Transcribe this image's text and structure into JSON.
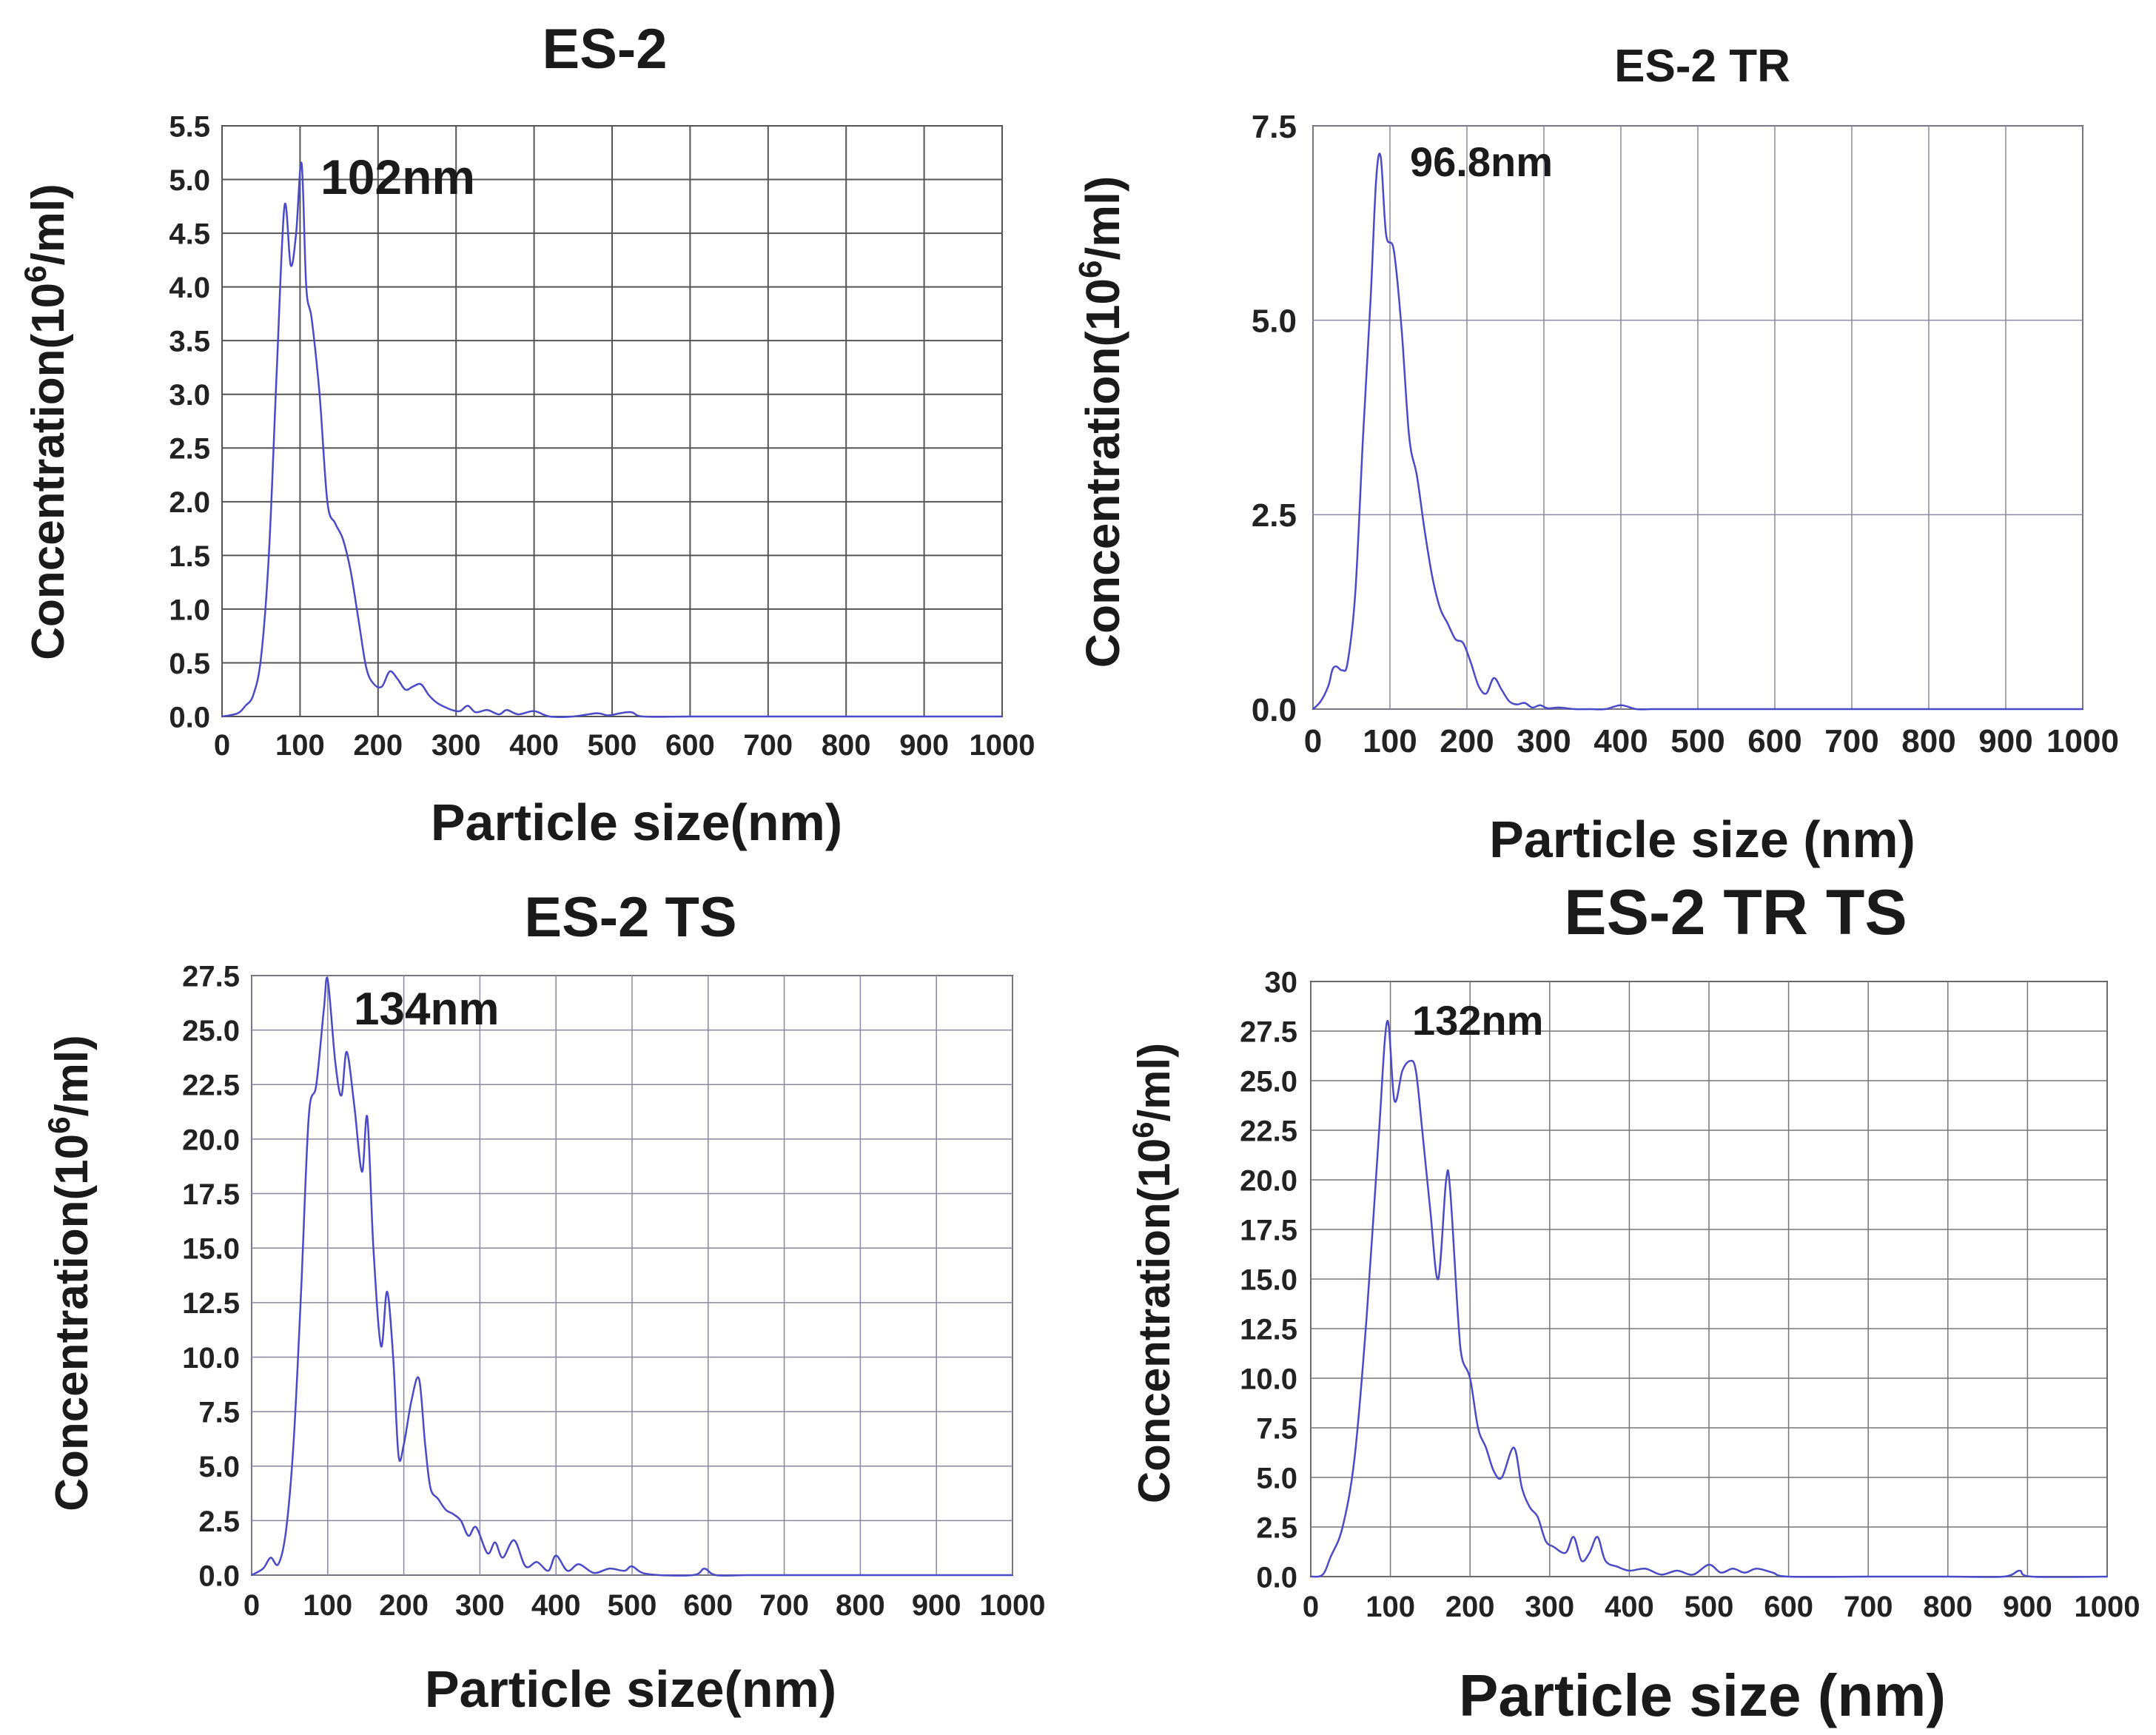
{
  "chart_data": [
    {
      "type": "line",
      "title": "ES-2",
      "xlabel": "Particle size(nm)",
      "ylabel_main": "Concentration(10",
      "ylabel_sup": "6",
      "ylabel_tail": "/ml)",
      "xlim": [
        0,
        1000
      ],
      "ylim": [
        0,
        5.5
      ],
      "xticks": [
        "0",
        "100",
        "200",
        "300",
        "400",
        "500",
        "600",
        "700",
        "800",
        "900",
        "1000"
      ],
      "yticks": [
        "0.0",
        "0.5",
        "1.0",
        "1.5",
        "2.0",
        "2.5",
        "3.0",
        "3.5",
        "4.0",
        "4.5",
        "5.0",
        "5.5"
      ],
      "annotation": {
        "text": "102nm",
        "x": 102
      },
      "line_color": "#4a4ac8",
      "series": [
        {
          "name": "ES-2",
          "x": [
            0,
            20,
            30,
            40,
            50,
            60,
            70,
            80,
            88,
            95,
            102,
            108,
            115,
            125,
            135,
            145,
            155,
            165,
            175,
            185,
            195,
            205,
            215,
            225,
            235,
            245,
            255,
            265,
            275,
            285,
            295,
            305,
            315,
            325,
            340,
            355,
            365,
            380,
            400,
            420,
            450,
            480,
            495,
            510,
            525,
            540,
            600,
            700,
            800,
            900,
            1000
          ],
          "y": [
            0,
            0.03,
            0.1,
            0.2,
            0.55,
            1.5,
            3.2,
            4.75,
            4.2,
            4.5,
            5.15,
            4.0,
            3.7,
            3.0,
            2.0,
            1.8,
            1.65,
            1.35,
            0.9,
            0.45,
            0.3,
            0.28,
            0.42,
            0.35,
            0.25,
            0.28,
            0.3,
            0.2,
            0.13,
            0.09,
            0.06,
            0.05,
            0.1,
            0.04,
            0.06,
            0.02,
            0.06,
            0.02,
            0.05,
            0.0,
            0.0,
            0.03,
            0.01,
            0.03,
            0.04,
            0.0,
            0.0,
            0.0,
            0.0,
            0.0,
            0.0
          ]
        }
      ]
    },
    {
      "type": "line",
      "title": "ES-2 TR",
      "xlabel": "Particle size (nm)",
      "ylabel_main": "Concentration(10",
      "ylabel_sup": "6",
      "ylabel_tail": "/ml)",
      "xlim": [
        0,
        1000
      ],
      "ylim": [
        0,
        7.5
      ],
      "xticks": [
        "0",
        "100",
        "200",
        "300",
        "400",
        "500",
        "600",
        "700",
        "800",
        "900",
        "1000"
      ],
      "yticks": [
        "0.0",
        "2.5",
        "5.0",
        "7.5"
      ],
      "annotation": {
        "text": "96.8nm",
        "x": 97
      },
      "line_color": "#4a4ac8",
      "series": [
        {
          "name": "ES-2 TR",
          "x": [
            0,
            10,
            20,
            25,
            30,
            38,
            45,
            55,
            65,
            75,
            82,
            88,
            95,
            105,
            115,
            125,
            135,
            145,
            155,
            165,
            175,
            185,
            195,
            205,
            215,
            225,
            235,
            245,
            255,
            265,
            275,
            285,
            295,
            305,
            320,
            340,
            360,
            380,
            400,
            420,
            440,
            460,
            500,
            600,
            700,
            800,
            900,
            1000
          ],
          "y": [
            0,
            0.1,
            0.3,
            0.5,
            0.55,
            0.5,
            0.6,
            1.5,
            3.5,
            5.3,
            6.8,
            7.1,
            6.1,
            5.9,
            4.9,
            3.5,
            3.0,
            2.3,
            1.7,
            1.3,
            1.1,
            0.9,
            0.85,
            0.6,
            0.3,
            0.2,
            0.4,
            0.25,
            0.1,
            0.06,
            0.08,
            0.02,
            0.05,
            0.01,
            0.02,
            0.0,
            0.0,
            0.0,
            0.05,
            0.0,
            0.0,
            0.0,
            0.0,
            0.0,
            0.0,
            0.0,
            0.0,
            0.0
          ]
        }
      ]
    },
    {
      "type": "line",
      "title": "ES-2 TS",
      "xlabel": "Particle size(nm)",
      "ylabel_main": "Concentration(10",
      "ylabel_sup": "6",
      "ylabel_tail": "/ml)",
      "xlim": [
        0,
        1000
      ],
      "ylim": [
        0,
        27.5
      ],
      "xticks": [
        "0",
        "100",
        "200",
        "300",
        "400",
        "500",
        "600",
        "700",
        "800",
        "900",
        "1000"
      ],
      "yticks": [
        "0.0",
        "2.5",
        "5.0",
        "7.5",
        "10.0",
        "12.5",
        "15.0",
        "17.5",
        "20.0",
        "22.5",
        "25.0",
        "27.5"
      ],
      "annotation": {
        "text": "134nm",
        "x": 134
      },
      "line_color": "#4a4ac8",
      "series": [
        {
          "name": "ES-2 TS",
          "x": [
            0,
            15,
            25,
            35,
            45,
            55,
            65,
            75,
            85,
            95,
            100,
            110,
            118,
            125,
            135,
            145,
            152,
            160,
            170,
            178,
            186,
            193,
            200,
            210,
            220,
            228,
            235,
            245,
            255,
            265,
            275,
            285,
            295,
            310,
            320,
            330,
            345,
            360,
            375,
            390,
            400,
            415,
            430,
            450,
            470,
            490,
            500,
            520,
            580,
            595,
            610,
            650,
            700,
            800,
            900,
            1000
          ],
          "y": [
            0,
            0.3,
            0.8,
            0.5,
            2.0,
            6.0,
            13.0,
            21.0,
            22.5,
            26.0,
            27.3,
            23.5,
            22.0,
            24.0,
            21.5,
            18.5,
            21.0,
            15.0,
            10.5,
            13.0,
            10.0,
            5.5,
            6.0,
            8.0,
            9.0,
            6.0,
            4.0,
            3.5,
            3.0,
            2.8,
            2.5,
            1.8,
            2.2,
            1.0,
            1.5,
            0.8,
            1.6,
            0.4,
            0.6,
            0.2,
            0.9,
            0.2,
            0.5,
            0.1,
            0.3,
            0.2,
            0.4,
            0.05,
            0.0,
            0.3,
            0.0,
            0.0,
            0.0,
            0.0,
            0.0,
            0.0
          ]
        }
      ]
    },
    {
      "type": "line",
      "title": "ES-2 TR TS",
      "xlabel": "Particle size (nm)",
      "ylabel_main": "Concentration(10",
      "ylabel_sup": "6",
      "ylabel_tail": "/ml)",
      "xlim": [
        0,
        1000
      ],
      "ylim": [
        0,
        30
      ],
      "xticks": [
        "0",
        "100",
        "200",
        "300",
        "400",
        "500",
        "600",
        "700",
        "800",
        "900",
        "1000"
      ],
      "yticks": [
        "0.0",
        "2.5",
        "5.0",
        "7.5",
        "10.0",
        "12.5",
        "15.0",
        "17.5",
        "20.0",
        "22.5",
        "25.0",
        "27.5",
        "30"
      ],
      "annotation": {
        "text": "132nm",
        "x": 132
      },
      "line_color": "#4a4ac8",
      "series": [
        {
          "name": "ES-2 TR TS",
          "x": [
            0,
            15,
            25,
            40,
            55,
            70,
            85,
            96,
            105,
            115,
            125,
            132,
            140,
            150,
            160,
            170,
            175,
            185,
            190,
            200,
            210,
            220,
            230,
            240,
            255,
            265,
            275,
            285,
            295,
            305,
            320,
            330,
            340,
            350,
            360,
            370,
            385,
            400,
            420,
            440,
            460,
            480,
            500,
            515,
            530,
            545,
            560,
            580,
            600,
            700,
            800,
            870,
            890,
            905,
            1000
          ],
          "y": [
            0,
            0.1,
            1.0,
            2.5,
            6.0,
            13.0,
            22.0,
            28.0,
            24.0,
            25.5,
            26.0,
            25.5,
            22.5,
            18.5,
            15.0,
            20.0,
            19.5,
            13.0,
            11.0,
            10.0,
            7.5,
            6.5,
            5.3,
            5.0,
            6.5,
            4.5,
            3.5,
            3.0,
            1.8,
            1.5,
            1.2,
            2.0,
            0.8,
            1.2,
            2.0,
            0.8,
            0.5,
            0.3,
            0.4,
            0.1,
            0.3,
            0.1,
            0.6,
            0.2,
            0.4,
            0.2,
            0.4,
            0.2,
            0.0,
            0.0,
            0.0,
            0.0,
            0.3,
            0.0,
            0.0
          ]
        }
      ]
    }
  ]
}
